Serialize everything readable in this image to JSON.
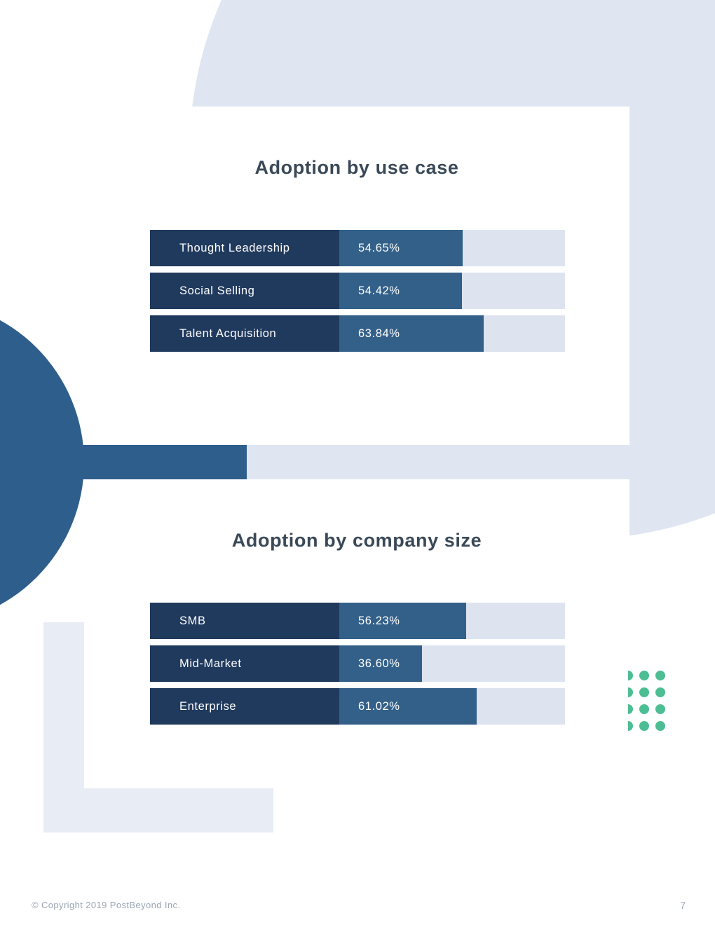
{
  "colors": {
    "light": "#dfe5f1",
    "dark": "#2e5e8c",
    "navy": "#203a5e",
    "mid": "#336089",
    "track": "#dde3ef",
    "teal": "#4dbd94",
    "title": "#3a4957",
    "footer": "#9aa6b4"
  },
  "chart_data": [
    {
      "type": "bar",
      "orientation": "horizontal",
      "title": "Adoption by use case",
      "categories": [
        "Thought Leadership",
        "Social Selling",
        "Talent Acquisition"
      ],
      "values": [
        54.65,
        54.42,
        63.84
      ],
      "value_labels": [
        "54.65%",
        "54.42%",
        "63.84%"
      ],
      "xlim": [
        0,
        100
      ],
      "grid": false,
      "legend": "none"
    },
    {
      "type": "bar",
      "orientation": "horizontal",
      "title": "Adoption by company size",
      "categories": [
        "SMB",
        "Mid-Market",
        "Enterprise"
      ],
      "values": [
        56.23,
        36.6,
        61.02
      ],
      "value_labels": [
        "56.23%",
        "36.60%",
        "61.02%"
      ],
      "xlim": [
        0,
        100
      ],
      "grid": false,
      "legend": "none"
    }
  ],
  "footer": {
    "copyright": "© Copyright 2019 PostBeyond Inc.",
    "page_number": "7"
  }
}
